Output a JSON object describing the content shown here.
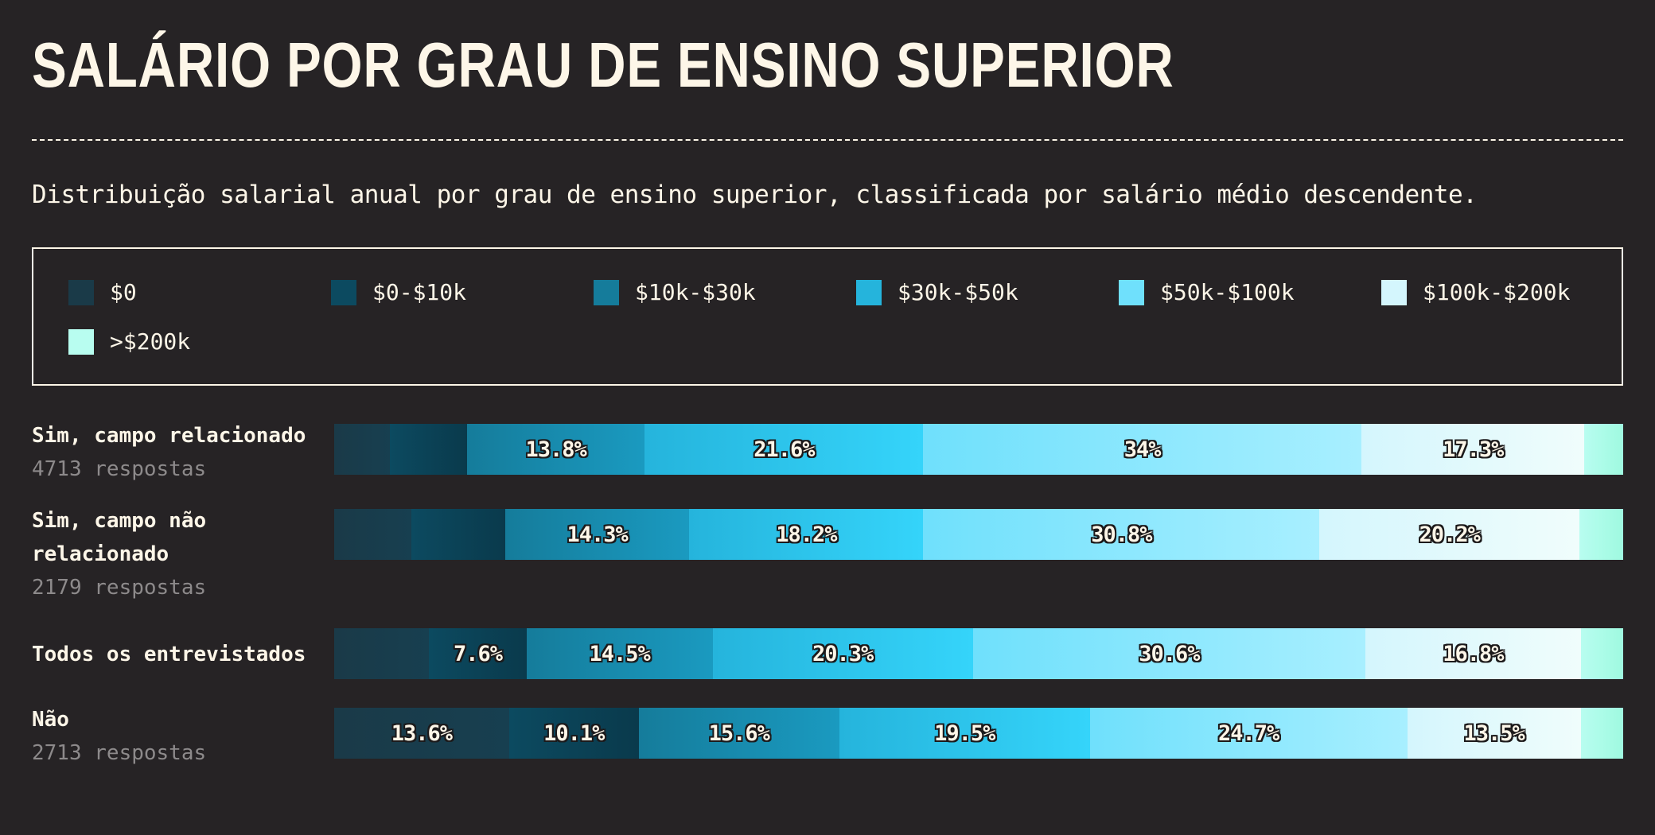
{
  "chart_data": {
    "type": "stacked-bar-horizontal",
    "title": "SALÁRIO POR GRAU DE ENSINO SUPERIOR",
    "subtitle": "Distribuição salarial anual por grau de ensino superior, classificada por salário médio descendente.",
    "legend_placement": "top",
    "categories": [
      "$0",
      "$0-$10k",
      "$10k-$30k",
      "$30k-$50k",
      "$50k-$100k",
      "$100k-$200k",
      ">$200k"
    ],
    "colors": [
      "#1a3a48",
      "#0c4a60",
      "#157c9b",
      "#25b4dc",
      "#6fe0fc",
      "#d4f6fd",
      "#b8fdf0"
    ],
    "gradient_ends": [
      "#173f50",
      "#0a3a4c",
      "#1a9ac0",
      "#35d4fa",
      "#a8efff",
      "#f0fdfc",
      "#9ffae0"
    ],
    "rows": [
      {
        "name": "Sim, campo relacionado",
        "count_label": "4713 respostas",
        "values": [
          4.3,
          6.0,
          13.8,
          21.6,
          34.0,
          17.3,
          3.0
        ],
        "labels": [
          "",
          "",
          "13.8%",
          "21.6%",
          "34%",
          "17.3%",
          ""
        ]
      },
      {
        "name": "Sim, campo não relacionado",
        "count_label": "2179 respostas",
        "values": [
          6.0,
          7.3,
          14.3,
          18.2,
          30.8,
          20.2,
          3.4
        ],
        "labels": [
          "",
          "",
          "14.3%",
          "18.2%",
          "30.8%",
          "20.2%",
          ""
        ]
      },
      {
        "name": "Todos os entrevistados",
        "count_label": "",
        "values": [
          7.4,
          7.6,
          14.5,
          20.3,
          30.6,
          16.8,
          3.3
        ],
        "labels": [
          "",
          "7.6%",
          "14.5%",
          "20.3%",
          "30.6%",
          "16.8%",
          ""
        ]
      },
      {
        "name": "Não",
        "count_label": "2713 respostas",
        "values": [
          13.6,
          10.1,
          15.6,
          19.5,
          24.7,
          13.5,
          3.3
        ],
        "labels": [
          "13.6%",
          "10.1%",
          "15.6%",
          "19.5%",
          "24.7%",
          "13.5%",
          ""
        ]
      }
    ]
  }
}
